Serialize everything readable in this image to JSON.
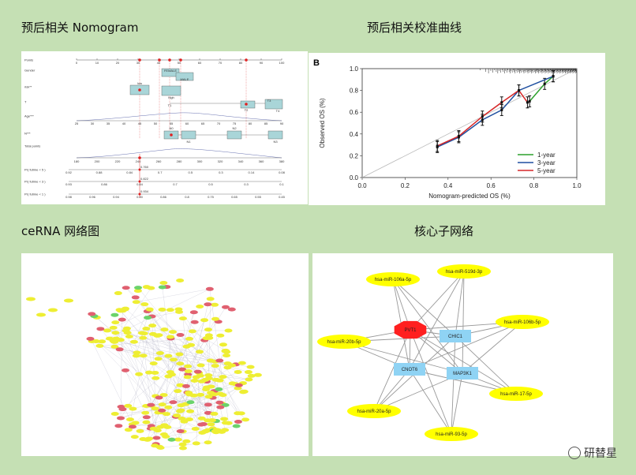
{
  "headings": {
    "nomogram": "预后相关 Nomogram",
    "calibration": "预后相关校准曲线",
    "cerna": "ceRNA 网络图",
    "core": "核心子网络"
  },
  "nomogram": {
    "rows": [
      "Points",
      "Gender",
      "risk**",
      "T",
      "Age***",
      "N***",
      "Total points",
      "Pr( futime < 5 )",
      "Pr( futime < 3 )",
      "Pr( futime < 1 )"
    ],
    "points_ticks": [
      "0",
      "10",
      "20",
      "30",
      "40",
      "50",
      "60",
      "70",
      "80",
      "90",
      "100"
    ],
    "gender_levels": [
      "FEMALE",
      "MALE"
    ],
    "risk_levels": [
      "low",
      "high"
    ],
    "t_levels": [
      "T1",
      "T2",
      "T3",
      "T4"
    ],
    "age_ticks": [
      "25",
      "30",
      "35",
      "40",
      "45",
      "50",
      "55",
      "60",
      "65",
      "70",
      "75",
      "80",
      "85",
      "90"
    ],
    "n_levels": [
      "N0",
      "N1",
      "N2",
      "N3"
    ],
    "total_ticks": [
      "180",
      "200",
      "220",
      "240",
      "260",
      "280",
      "300",
      "320",
      "340",
      "360",
      "380"
    ],
    "pr5_ticks": [
      "0.92",
      "0.88",
      "0.84",
      "0.7",
      "0.5",
      "0.3",
      "0.14",
      "0.08"
    ],
    "pr3_ticks": [
      "0.93",
      "0.86",
      "0.84",
      "0.7",
      "0.5",
      "0.3",
      "0.1"
    ],
    "pr1_ticks": [
      "0.98",
      "0.96",
      "0.94",
      "0.90",
      "0.86",
      "0.8",
      "0.75",
      "0.65",
      "0.55",
      "0.45"
    ],
    "highlight_values": [
      "0.760",
      "0.822",
      "0.934"
    ]
  },
  "calibration": {
    "panel_label": "B",
    "xlabel": "Nomogram-predicted OS (%)",
    "ylabel": "Observed OS (%)",
    "x_ticks": [
      "0.0",
      "0.2",
      "0.4",
      "0.6",
      "0.8",
      "1.0"
    ],
    "y_ticks": [
      "0.0",
      "0.2",
      "0.4",
      "0.6",
      "0.8",
      "1.0"
    ],
    "legend": [
      "1-year",
      "3-year",
      "5-year"
    ],
    "colors": {
      "1-year": "#2ca02c",
      "3-year": "#1f4fa0",
      "5-year": "#d62728"
    }
  },
  "chart_data": {
    "type": "line",
    "xlabel": "Nomogram-predicted OS (%)",
    "ylabel": "Observed OS (%)",
    "xlim": [
      0,
      1
    ],
    "ylim": [
      0,
      1
    ],
    "series": [
      {
        "name": "1-year",
        "x": [
          0.78,
          0.85,
          0.89
        ],
        "y": [
          0.7,
          0.86,
          0.93
        ]
      },
      {
        "name": "3-year",
        "x": [
          0.35,
          0.45,
          0.56,
          0.65,
          0.73,
          0.89
        ],
        "y": [
          0.28,
          0.37,
          0.53,
          0.62,
          0.8,
          0.93
        ]
      },
      {
        "name": "5-year",
        "x": [
          0.35,
          0.45,
          0.56,
          0.65,
          0.73,
          0.77
        ],
        "y": [
          0.29,
          0.38,
          0.56,
          0.69,
          0.8,
          0.69
        ]
      }
    ]
  },
  "core_network": {
    "mirnas": [
      "hsa-miR-106a-5p",
      "hsa-miR-519d-3p",
      "hsa-miR-106b-5p",
      "hsa-miR-20b-5p",
      "hsa-miR-17-5p",
      "hsa-miR-20a-5p",
      "hsa-miR-93-5p"
    ],
    "genes": [
      "CHIC1",
      "CNOT6",
      "MAP3K1"
    ],
    "lnc": "PVT1",
    "colors": {
      "mirna": "#ffff00",
      "gene": "#8fd3f4",
      "lnc": "#ff2020",
      "edge": "#999999"
    }
  },
  "watermark": "研替星"
}
